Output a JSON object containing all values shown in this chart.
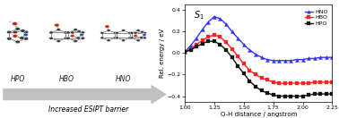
{
  "title": "S$_1$",
  "xlabel": "O-H distance / angstrom",
  "ylabel": "Rel. energy / eV",
  "xlim": [
    1.0,
    2.25
  ],
  "ylim": [
    -0.45,
    0.45
  ],
  "xticks": [
    1.0,
    1.25,
    1.5,
    1.75,
    2.0,
    2.25
  ],
  "yticks": [
    -0.4,
    -0.2,
    0.0,
    0.2,
    0.4
  ],
  "legend": [
    "HNO",
    "HBO",
    "HPO"
  ],
  "colors": [
    "#3333ff",
    "#ff2222",
    "#111111"
  ],
  "markers": [
    "^",
    "s",
    "s"
  ],
  "markersizes": [
    3.0,
    3.0,
    3.0
  ],
  "linewidths": [
    1.0,
    1.0,
    1.0
  ],
  "x": [
    1.0,
    1.05,
    1.1,
    1.15,
    1.2,
    1.25,
    1.3,
    1.35,
    1.4,
    1.45,
    1.5,
    1.55,
    1.6,
    1.65,
    1.7,
    1.75,
    1.8,
    1.85,
    1.9,
    1.95,
    2.0,
    2.05,
    2.1,
    2.15,
    2.2,
    2.25
  ],
  "HNO": [
    0.01,
    0.07,
    0.14,
    0.22,
    0.29,
    0.34,
    0.32,
    0.27,
    0.2,
    0.14,
    0.08,
    0.03,
    -0.01,
    -0.04,
    -0.06,
    -0.07,
    -0.07,
    -0.07,
    -0.07,
    -0.06,
    -0.06,
    -0.05,
    -0.05,
    -0.04,
    -0.04,
    -0.04
  ],
  "HBO": [
    0.01,
    0.04,
    0.08,
    0.12,
    0.15,
    0.17,
    0.15,
    0.1,
    0.04,
    -0.03,
    -0.1,
    -0.16,
    -0.2,
    -0.23,
    -0.25,
    -0.27,
    -0.28,
    -0.28,
    -0.28,
    -0.28,
    -0.28,
    -0.28,
    -0.27,
    -0.27,
    -0.27,
    -0.27
  ],
  "HPO": [
    0.01,
    0.03,
    0.06,
    0.09,
    0.11,
    0.11,
    0.08,
    0.03,
    -0.04,
    -0.12,
    -0.19,
    -0.26,
    -0.31,
    -0.35,
    -0.37,
    -0.39,
    -0.4,
    -0.4,
    -0.4,
    -0.4,
    -0.4,
    -0.39,
    -0.38,
    -0.38,
    -0.38,
    -0.38
  ],
  "arrow_text": "Increased ESIPT barrier",
  "molecule_labels": [
    "HPO",
    "HBO",
    "HNO"
  ],
  "mol_colors": {
    "C": "#404040",
    "O": "#cc2200",
    "N": "#2255cc",
    "H": "#cccccc",
    "bond": "#888888"
  }
}
